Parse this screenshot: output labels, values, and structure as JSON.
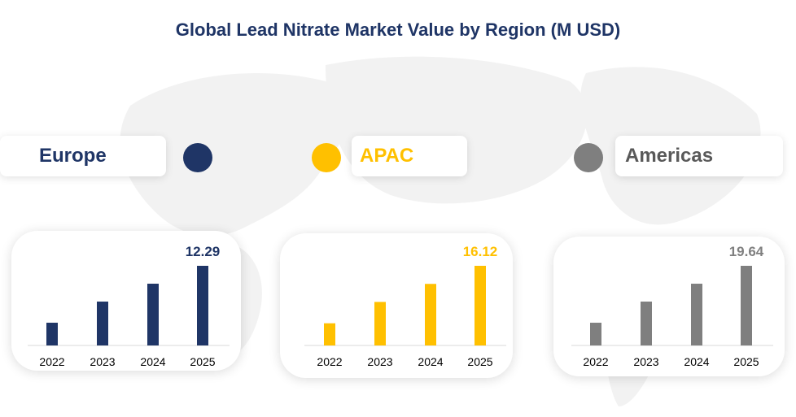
{
  "chart_data": [
    {
      "type": "bar",
      "title": "Global Lead Nitrate Market Value by Region (M USD)",
      "region": "Europe",
      "color": "#1f3566",
      "categories": [
        "2022",
        "2023",
        "2024",
        "2025"
      ],
      "values": [
        3.51,
        6.77,
        9.53,
        12.29
      ],
      "value_label": "12.29",
      "ylim": [
        0,
        12.29
      ]
    },
    {
      "type": "bar",
      "region": "APAC",
      "color": "#ffc000",
      "categories": [
        "2022",
        "2023",
        "2024",
        "2025"
      ],
      "values": [
        4.49,
        8.81,
        12.46,
        16.12
      ],
      "value_label": "16.12",
      "ylim": [
        0,
        16.12
      ]
    },
    {
      "type": "bar",
      "region": "Americas",
      "color": "#7f7f7f",
      "categories": [
        "2022",
        "2023",
        "2024",
        "2025"
      ],
      "values": [
        5.61,
        10.82,
        15.23,
        19.64
      ],
      "value_label": "19.64",
      "ylim": [
        0,
        19.64
      ]
    }
  ],
  "title": "Global Lead Nitrate Market Value by Region (M USD)"
}
